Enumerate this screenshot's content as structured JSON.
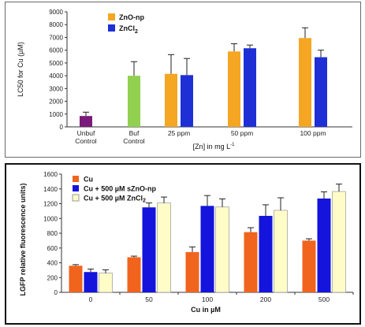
{
  "chart_data": [
    {
      "type": "bar",
      "title": "",
      "ylabel": "LC50 for Cu (µM)",
      "xlabel": "[Zn] in mg L",
      "xlabel_sup": "-1",
      "ylim": [
        0,
        9000
      ],
      "yticks": [
        0,
        1000,
        2000,
        3000,
        4000,
        5000,
        6000,
        7000,
        8000,
        9000
      ],
      "grid": false,
      "legend_position": "top-left",
      "categories": [
        "Unbuf\nControl",
        "Buf\nControl",
        "25 ppm",
        "50 ppm",
        "100 ppm"
      ],
      "legend": [
        {
          "name": "ZnO-np",
          "color": "#f5a623"
        },
        {
          "name": "ZnCl",
          "sub": "2",
          "color": "#1f2fd6"
        }
      ],
      "bars": [
        {
          "category": "Unbuf\nControl",
          "series": "Unbuf Control",
          "value": 850,
          "error": 300,
          "color": "#7a1a7a"
        },
        {
          "category": "Buf\nControl",
          "series": "Buf Control",
          "value": 4000,
          "error": 1100,
          "color": "#92d050"
        },
        {
          "category": "25 ppm",
          "series": "ZnO-np",
          "value": 4150,
          "error": 1500,
          "color": "#f5a623"
        },
        {
          "category": "25 ppm",
          "series": "ZnCl2",
          "value": 4050,
          "error": 1300,
          "color": "#1f2fd6"
        },
        {
          "category": "50 ppm",
          "series": "ZnO-np",
          "value": 5900,
          "error": 600,
          "color": "#f5a623"
        },
        {
          "category": "50 ppm",
          "series": "ZnCl2",
          "value": 6150,
          "error": 250,
          "color": "#1f2fd6"
        },
        {
          "category": "100 ppm",
          "series": "ZnO-np",
          "value": 6950,
          "error": 800,
          "color": "#f5a623"
        },
        {
          "category": "100 ppm",
          "series": "ZnCl2",
          "value": 5450,
          "error": 550,
          "color": "#1f2fd6"
        }
      ]
    },
    {
      "type": "bar",
      "title": "",
      "ylabel": "LGFP relative fluorescence  units)",
      "xlabel": "Cu in µM",
      "ylim": [
        0,
        1600
      ],
      "yticks": [
        0,
        200,
        400,
        600,
        800,
        1000,
        1200,
        1400,
        1600
      ],
      "grid": false,
      "legend_position": "top-left",
      "categories": [
        "0",
        "50",
        "100",
        "200",
        "500"
      ],
      "series": [
        {
          "name": "Cu",
          "color": "#f0641e",
          "values": [
            360,
            475,
            545,
            815,
            700
          ],
          "errors": [
            15,
            15,
            70,
            60,
            25
          ]
        },
        {
          "name": "Cu + 500 µM sZnO-np",
          "color": "#1414dc",
          "values": [
            275,
            1150,
            1170,
            1035,
            1270
          ],
          "errors": [
            40,
            60,
            140,
            150,
            90
          ]
        },
        {
          "name": "Cu + 500 µM ZnCl",
          "sub": "2",
          "color": "#fffcc8",
          "values": [
            260,
            1210,
            1155,
            1110,
            1365
          ],
          "errors": [
            45,
            80,
            110,
            170,
            100
          ]
        }
      ]
    }
  ]
}
